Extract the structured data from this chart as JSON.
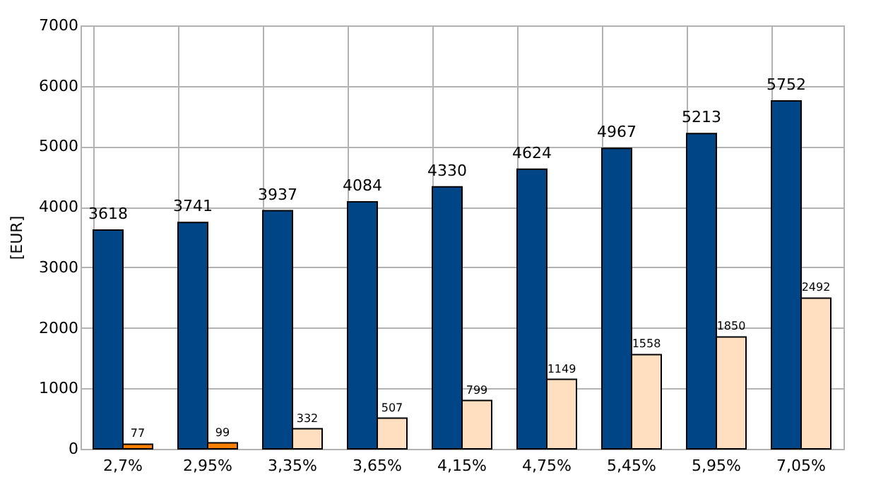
{
  "chart_data": {
    "type": "bar",
    "ylabel": "[EUR]",
    "categories": [
      "2,7%",
      "2,95%",
      "3,35%",
      "3,65%",
      "4,15%",
      "4,75%",
      "5,45%",
      "5,95%",
      "7,05%"
    ],
    "series": [
      {
        "color": "#004586",
        "values": [
          3618,
          3741,
          3937,
          4084,
          4330,
          4624,
          4967,
          5213,
          5752
        ]
      },
      {
        "colors": [
          "#ff8000",
          "#ff8000",
          "#ffdfbf",
          "#ffdfbf",
          "#ffdfbf",
          "#ffdfbf",
          "#ffdfbf",
          "#ffdfbf",
          "#ffdfbf"
        ],
        "values": [
          77,
          99,
          332,
          507,
          799,
          1149,
          1558,
          1850,
          2492
        ]
      }
    ],
    "ylim": [
      0,
      7000
    ],
    "yticks": [
      0,
      1000,
      2000,
      3000,
      4000,
      5000,
      6000,
      7000
    ],
    "grid": true,
    "data_labels": true
  }
}
